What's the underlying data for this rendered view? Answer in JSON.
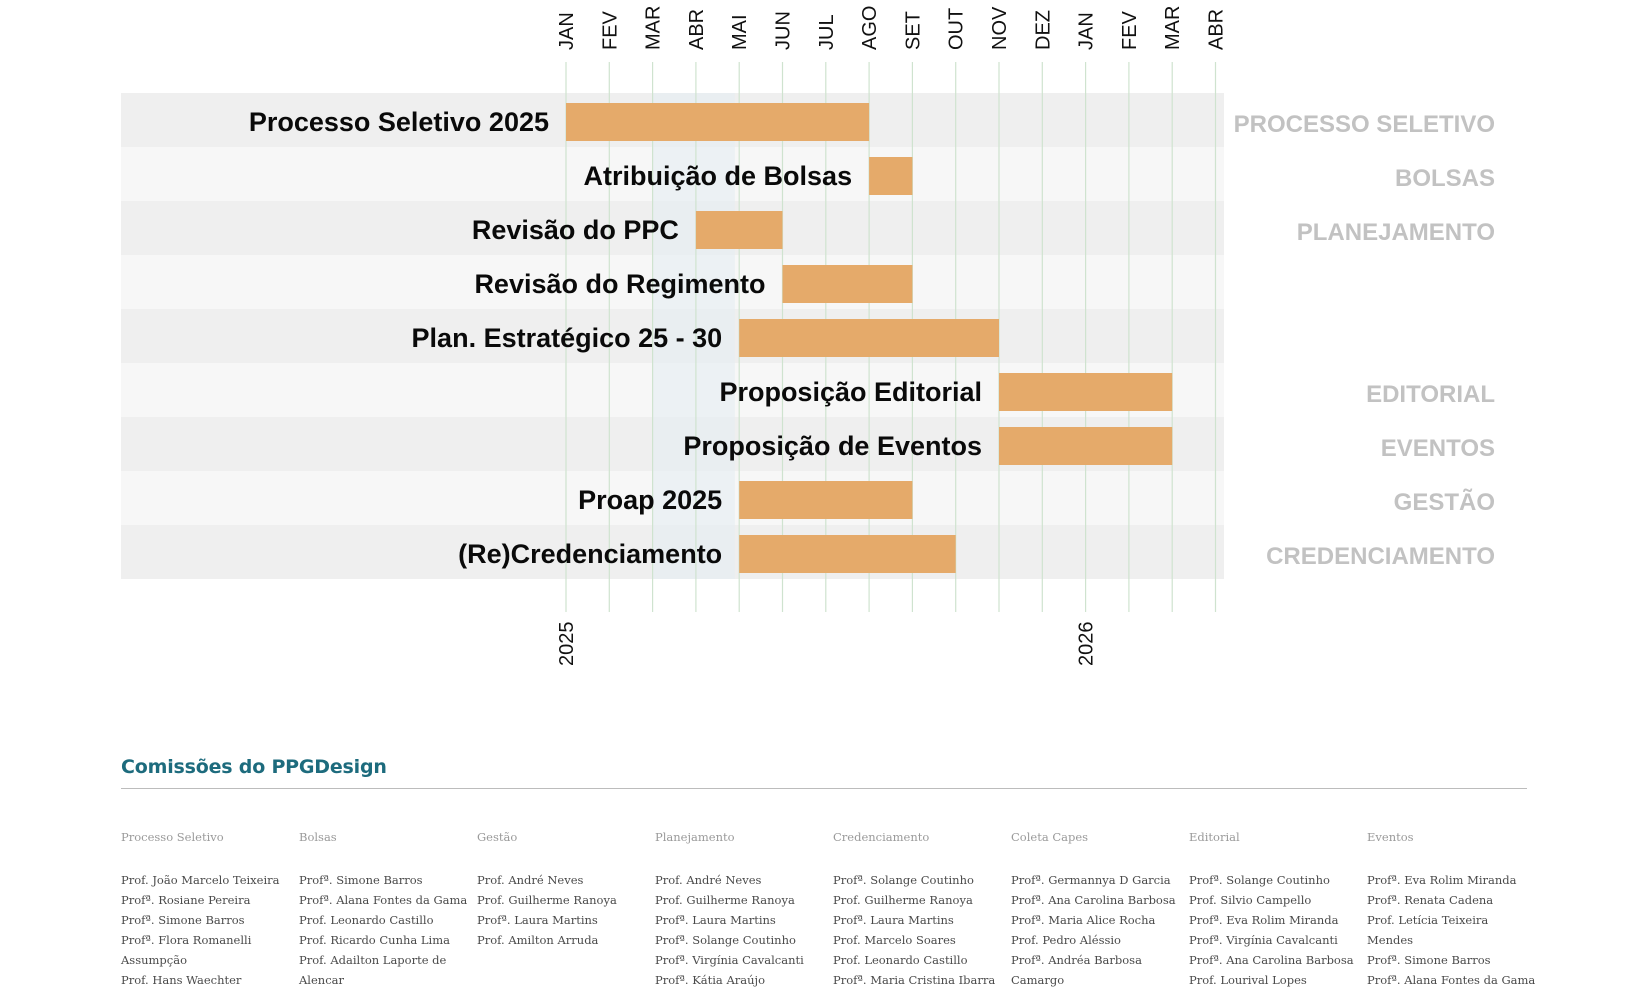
{
  "chart_data": {
    "type": "gantt",
    "months": [
      "JAN",
      "FEV",
      "MAR",
      "ABR",
      "MAI",
      "JUN",
      "JUL",
      "AGO",
      "SET",
      "OUT",
      "NOV",
      "DEZ",
      "JAN",
      "FEV",
      "MAR",
      "ABR"
    ],
    "year_labels": [
      {
        "label": "2025",
        "month_index": 0
      },
      {
        "label": "2026",
        "month_index": 12
      }
    ],
    "tasks": [
      {
        "name": "Processo Seletivo 2025",
        "start": 0,
        "end": 7,
        "group": "PROCESSO SELETIVO"
      },
      {
        "name": "Atribuição de Bolsas",
        "start": 7,
        "end": 8,
        "group": "BOLSAS"
      },
      {
        "name": "Revisão do PPC",
        "start": 3,
        "end": 5,
        "group": "PLANEJAMENTO"
      },
      {
        "name": "Revisão do Regimento",
        "start": 5,
        "end": 8,
        "group": ""
      },
      {
        "name": "Plan. Estratégico 25 - 30",
        "start": 4,
        "end": 10,
        "group": ""
      },
      {
        "name": "Proposição Editorial",
        "start": 10,
        "end": 14,
        "group": "EDITORIAL"
      },
      {
        "name": "Proposição de Eventos",
        "start": 10,
        "end": 14,
        "group": "EVENTOS"
      },
      {
        "name": "Proap 2025",
        "start": 4,
        "end": 8,
        "group": "GESTÃO"
      },
      {
        "name": "(Re)Credenciamento",
        "start": 4,
        "end": 9,
        "group": "CREDENCIAMENTO"
      }
    ],
    "bar_color": "#e5aa6a",
    "grid_color": "#cfe3cf",
    "highlight_color": "#e4ecf2"
  },
  "committees": {
    "title": "Comissões do PPGDesign",
    "columns": [
      {
        "title": "Processo Seletivo",
        "members": [
          "Prof. João Marcelo Teixeira",
          "Profª. Rosiane Pereira",
          "Profª. Simone Barros",
          "Profª. Flora Romanelli",
          "Assumpção",
          "Prof. Hans Waechter"
        ]
      },
      {
        "title": "Bolsas",
        "members": [
          "Profª. Simone Barros",
          "Profª. Alana Fontes da Gama",
          "Prof. Leonardo Castillo",
          "Prof. Ricardo Cunha Lima",
          "Prof. Adailton Laporte de",
          "Alencar"
        ]
      },
      {
        "title": "Gestão",
        "members": [
          "Prof. André Neves",
          "Prof. Guilherme Ranoya",
          "Profª. Laura Martins",
          "Prof. Amilton Arruda"
        ]
      },
      {
        "title": "Planejamento",
        "members": [
          "Prof. André Neves",
          "Prof. Guilherme Ranoya",
          "Profª. Laura Martins",
          "Profª. Solange Coutinho",
          "Profª. Virgínia Cavalcanti",
          "Profª. Kátia Araújo"
        ]
      },
      {
        "title": "Credenciamento",
        "members": [
          "Profª. Solange Coutinho",
          "Prof. Guilherme Ranoya",
          "Profª. Laura Martins",
          "Prof. Marcelo Soares",
          "Prof. Leonardo Castillo",
          "Profª. Maria Cristina Ibarra"
        ]
      },
      {
        "title": "Coleta Capes",
        "members": [
          "Profª. Germannya D Garcia",
          "Profª. Ana Carolina Barbosa",
          "Profª. Maria Alice Rocha",
          "Prof. Pedro Aléssio",
          "Profª. Andréa Barbosa",
          "Camargo"
        ]
      },
      {
        "title": "Editorial",
        "members": [
          "Profª. Solange Coutinho",
          "Prof. Silvio Campello",
          "Profª. Eva Rolim Miranda",
          "Profª. Virgínia Cavalcanti",
          "Profª. Ana Carolina Barbosa",
          "Prof. Lourival Lopes"
        ]
      },
      {
        "title": "Eventos",
        "members": [
          "Profª. Eva Rolim Miranda",
          "Profª. Renata Cadena",
          "Prof. Letícia Teixeira Mendes",
          "Profª. Simone Barros",
          "Profª. Alana Fontes da Gama"
        ]
      }
    ]
  }
}
